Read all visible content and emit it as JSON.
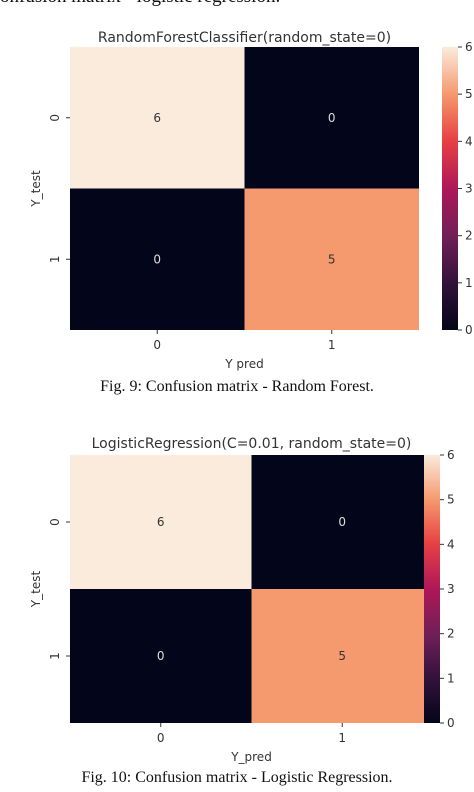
{
  "top_caption": "onfusion matrix - logistic regression.",
  "figures": [
    {
      "caption": "Fig. 9: Confusion matrix - Random Forest."
    },
    {
      "caption": "Fig. 10: Confusion matrix - Logistic Regression."
    }
  ],
  "chart_data": [
    {
      "type": "heatmap",
      "title": "RandomForestClassifier(random_state=0)",
      "xlabel": "Y pred",
      "ylabel": "Y_test",
      "x_categories": [
        "0",
        "1"
      ],
      "y_categories": [
        "0",
        "1"
      ],
      "values": [
        [
          6,
          0
        ],
        [
          0,
          5
        ]
      ],
      "colorbar": {
        "range": [
          0,
          6
        ],
        "ticks": [
          "0",
          "1",
          "2",
          "3",
          "4",
          "5",
          "6"
        ]
      },
      "colormap": "rocket",
      "colors": {
        "6": "#faebdd",
        "5": "#f5a37a",
        "0": "#03051a"
      }
    },
    {
      "type": "heatmap",
      "title": "LogisticRegression(C=0.01, random_state=0)",
      "xlabel": "Y_pred",
      "ylabel": "Y_test",
      "x_categories": [
        "0",
        "1"
      ],
      "y_categories": [
        "0",
        "1"
      ],
      "values": [
        [
          6,
          0
        ],
        [
          0,
          5
        ]
      ],
      "colorbar": {
        "range": [
          0,
          6
        ],
        "ticks": [
          "0",
          "1",
          "2",
          "3",
          "4",
          "5",
          "6"
        ]
      },
      "colormap": "rocket",
      "colors": {
        "6": "#faebdd",
        "5": "#f5a37a",
        "0": "#03051a"
      }
    }
  ]
}
